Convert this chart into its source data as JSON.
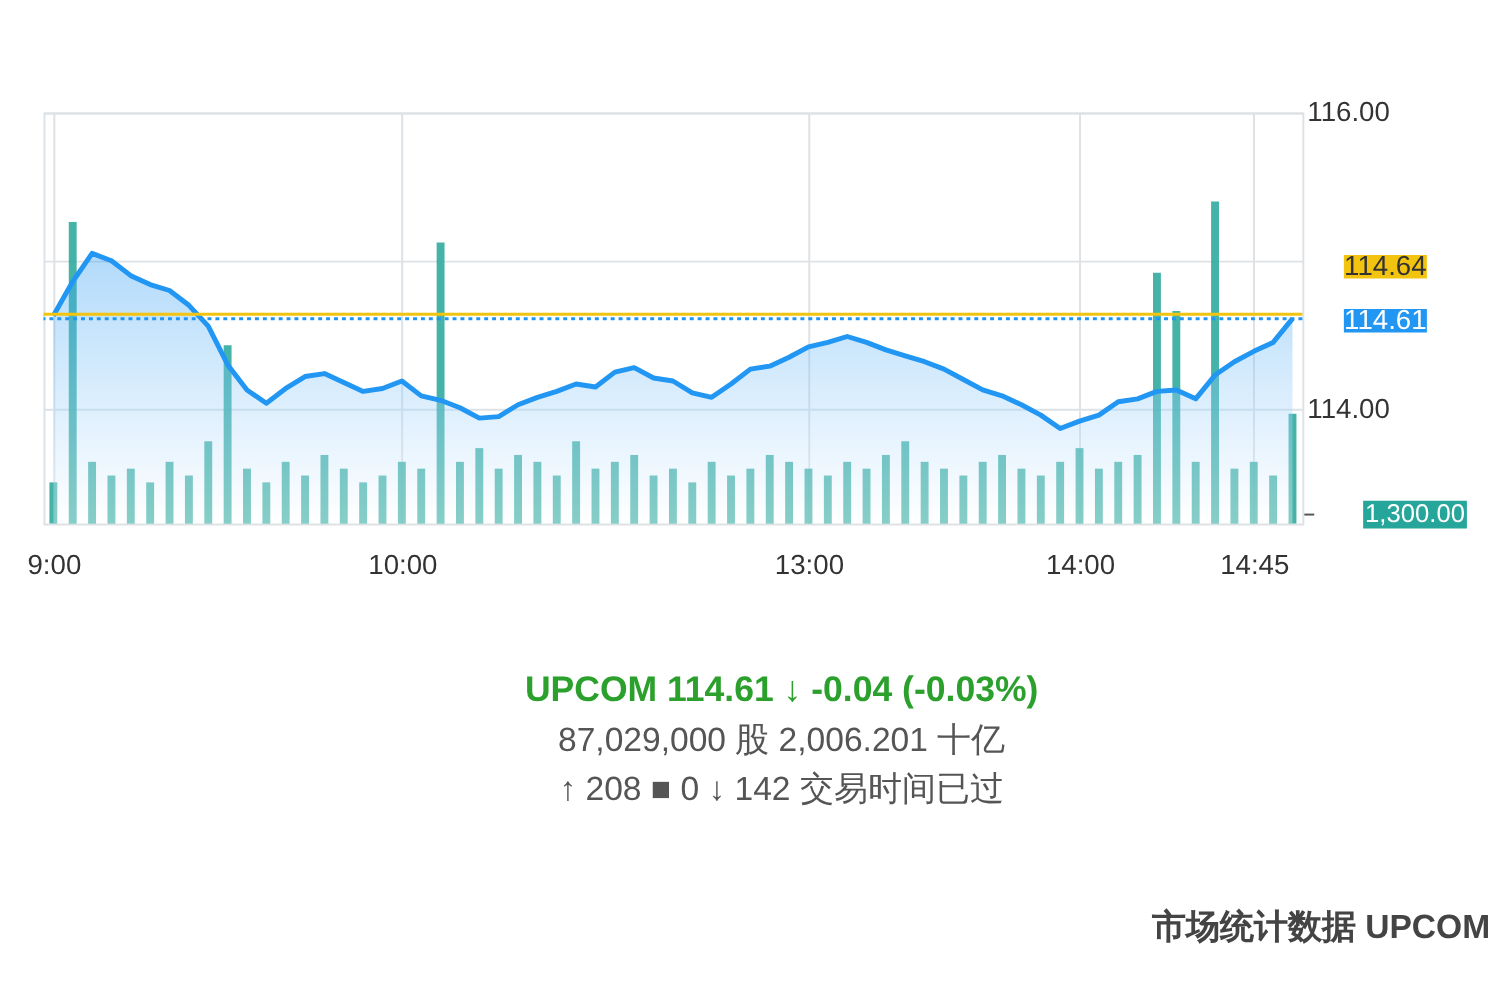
{
  "chart_data": {
    "type": "area",
    "categories": [
      "9:00",
      null,
      null,
      null,
      null,
      null,
      null,
      null,
      null,
      null,
      null,
      null,
      null,
      null,
      null,
      null,
      null,
      null,
      "10:00",
      null,
      null,
      null,
      null,
      null,
      null,
      null,
      null,
      null,
      null,
      null,
      null,
      null,
      null,
      null,
      null,
      null,
      null,
      null,
      null,
      "13:00",
      null,
      null,
      null,
      null,
      null,
      null,
      null,
      null,
      null,
      null,
      null,
      null,
      null,
      "14:00",
      null,
      null,
      null,
      null,
      null,
      null,
      null,
      null,
      "14:45",
      null,
      null
    ],
    "series": [
      {
        "color": "#2196f3",
        "values": [
          114.63,
          114.86,
          115.05,
          115.0,
          114.9,
          114.84,
          114.8,
          114.7,
          114.56,
          114.3,
          114.13,
          114.04,
          114.14,
          114.22,
          114.24,
          114.18,
          114.12,
          114.14,
          114.19,
          114.09,
          114.06,
          114.01,
          113.94,
          113.95,
          114.03,
          114.08,
          114.12,
          114.17,
          114.15,
          114.25,
          114.28,
          114.21,
          114.19,
          114.11,
          114.08,
          114.17,
          114.27,
          114.29,
          114.35,
          114.42,
          114.45,
          114.49,
          114.45,
          114.4,
          114.36,
          114.32,
          114.27,
          114.2,
          114.13,
          114.09,
          114.03,
          113.96,
          113.87,
          113.92,
          113.96,
          114.05,
          114.07,
          114.12,
          114.13,
          114.07,
          114.23,
          114.32,
          114.39,
          114.45,
          114.61
        ]
      },
      {
        "type": "bar",
        "axis": "y2",
        "color": "#26a69a",
        "values": [
          6000,
          44000,
          9000,
          7000,
          8000,
          6000,
          9000,
          7000,
          12000,
          26000,
          8000,
          6000,
          9000,
          7000,
          10000,
          8000,
          6000,
          7000,
          9000,
          8000,
          41000,
          9000,
          11000,
          8000,
          10000,
          9000,
          7000,
          12000,
          8000,
          9000,
          10000,
          7000,
          8000,
          6000,
          9000,
          7000,
          8000,
          10000,
          9000,
          8000,
          7000,
          9000,
          8000,
          10000,
          12000,
          9000,
          8000,
          7000,
          9000,
          10000,
          8000,
          7000,
          9000,
          11000,
          8000,
          9000,
          10000,
          36600,
          31000,
          9000,
          47000,
          8000,
          9000,
          7000,
          16000
        ]
      }
    ],
    "ylim": [
      113.23,
      116.0
    ],
    "yticks": [
      {
        "value": 114,
        "label": "114.00"
      },
      {
        "value": 115,
        "label": null
      },
      {
        "value": 116,
        "label": "116.00"
      }
    ],
    "y2lim": [
      0,
      60000
    ],
    "y2ticks": [
      {
        "value": 1300,
        "label": "1,300.00"
      }
    ],
    "ref_lines": [
      {
        "axis": "y",
        "value": 114.64,
        "label": "114.64",
        "color": "#f2c40f",
        "line_style": "solid"
      },
      {
        "axis": "y",
        "value": 114.61,
        "label": "114.61",
        "color": "#2196f3",
        "line_style": "dotted"
      }
    ],
    "grid": true,
    "annotations": [
      "UPCOM 114.61 ↓ -0.04 (-0.03%)",
      "87,029,000 股 2,006.201 十亿",
      "↑ 208 ■ 0 ↓ 142 交易时间已过",
      "市场统计数据 UPCOM"
    ]
  }
}
